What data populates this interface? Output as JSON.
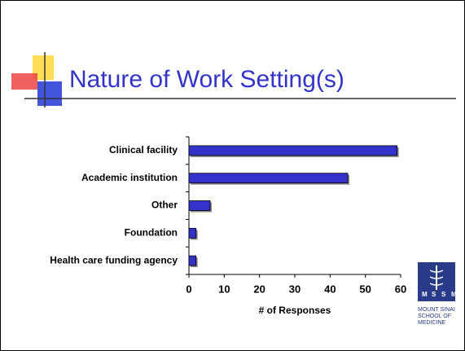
{
  "chart_data": {
    "type": "bar",
    "orientation": "horizontal",
    "title": "Nature of Work Setting(s)",
    "categories": [
      "Clinical facility",
      "Academic institution",
      "Other",
      "Foundation",
      "Health care funding agency"
    ],
    "values": [
      59,
      45,
      6,
      2,
      2
    ],
    "color": "#3333cc",
    "xlabel": "# of Responses",
    "xlim": [
      0,
      60
    ],
    "xticks": [
      0,
      10,
      20,
      30,
      40,
      50,
      60
    ]
  },
  "logo": {
    "letters": [
      "M",
      "S",
      "S",
      "M"
    ],
    "lines": [
      "MOUNT SINAI",
      "SCHOOL OF",
      "MEDICINE"
    ]
  }
}
